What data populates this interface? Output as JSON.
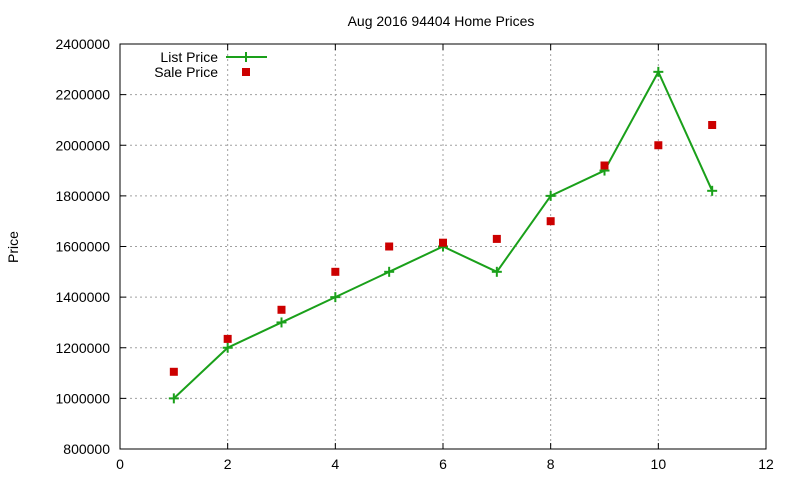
{
  "chart_data": {
    "type": "line",
    "title": "Aug 2016 94404 Home Prices",
    "xlabel": "",
    "ylabel": "Price",
    "xlim": [
      0,
      12
    ],
    "ylim": [
      800000,
      2400000
    ],
    "xticks": [
      0,
      2,
      4,
      6,
      8,
      10,
      12
    ],
    "yticks": [
      800000,
      1000000,
      1200000,
      1400000,
      1600000,
      1800000,
      2000000,
      2200000,
      2400000
    ],
    "x_tick_labels": [
      "0",
      "2",
      "4",
      "6",
      "8",
      "10",
      "12"
    ],
    "y_tick_labels": [
      "800000",
      "1000000",
      "1200000",
      "1400000",
      "1600000",
      "1800000",
      "2000000",
      "2200000",
      "2400000"
    ],
    "grid": true,
    "legend_position": "top-left",
    "series": [
      {
        "name": "List Price",
        "style": "line-with-plus-markers",
        "color": "#1aa01a",
        "x": [
          1,
          2,
          3,
          4,
          5,
          6,
          7,
          8,
          9,
          10,
          11
        ],
        "values": [
          1000000,
          1200000,
          1300000,
          1400000,
          1500000,
          1600000,
          1500000,
          1800000,
          1900000,
          2290000,
          1820000
        ]
      },
      {
        "name": "Sale Price",
        "style": "square-markers",
        "color": "#cc0000",
        "x": [
          1,
          2,
          3,
          4,
          5,
          6,
          7,
          8,
          9,
          10,
          11
        ],
        "values": [
          1105000,
          1235000,
          1350000,
          1500000,
          1600000,
          1615000,
          1630000,
          1700000,
          1920000,
          2000000,
          2080000
        ]
      }
    ]
  }
}
